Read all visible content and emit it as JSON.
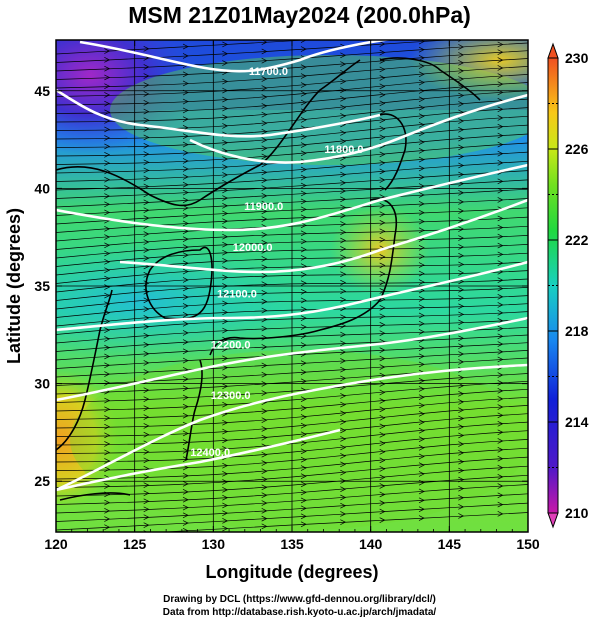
{
  "title": "MSM 21Z01May2024 (200.0hPa)",
  "map": {
    "xlabel": "Longitude (degrees)",
    "ylabel": "Latitude  (degrees)",
    "xlim": [
      120,
      150
    ],
    "ylim": [
      22.4,
      47.6
    ],
    "xticks": [
      120,
      125,
      130,
      135,
      140,
      145,
      150
    ],
    "yticks": [
      25,
      30,
      35,
      40,
      45
    ],
    "contour_labels": [
      {
        "text": "11700.0",
        "lon": 133.5,
        "lat": 45.8
      },
      {
        "text": "11800.0",
        "lon": 138.3,
        "lat": 41.8
      },
      {
        "text": "11900.0",
        "lon": 133.2,
        "lat": 38.9
      },
      {
        "text": "12000.0",
        "lon": 132.5,
        "lat": 36.8
      },
      {
        "text": "12100.0",
        "lon": 131.5,
        "lat": 34.4
      },
      {
        "text": "12200.0",
        "lon": 131.1,
        "lat": 31.8
      },
      {
        "text": "12300.0",
        "lon": 131.1,
        "lat": 29.2
      },
      {
        "text": "12400.0",
        "lon": 129.8,
        "lat": 26.3
      }
    ]
  },
  "colorbar": {
    "min": 210,
    "max": 230,
    "tick_labels": [
      "230",
      "226",
      "222",
      "218",
      "214",
      "210"
    ]
  },
  "credits": {
    "line1": "Drawing by DCL (https://www.gfd-dennou.org/library/dcl/)",
    "line2": "Data from http://database.rish.kyoto-u.ac.jp/arch/jmadata/"
  }
}
